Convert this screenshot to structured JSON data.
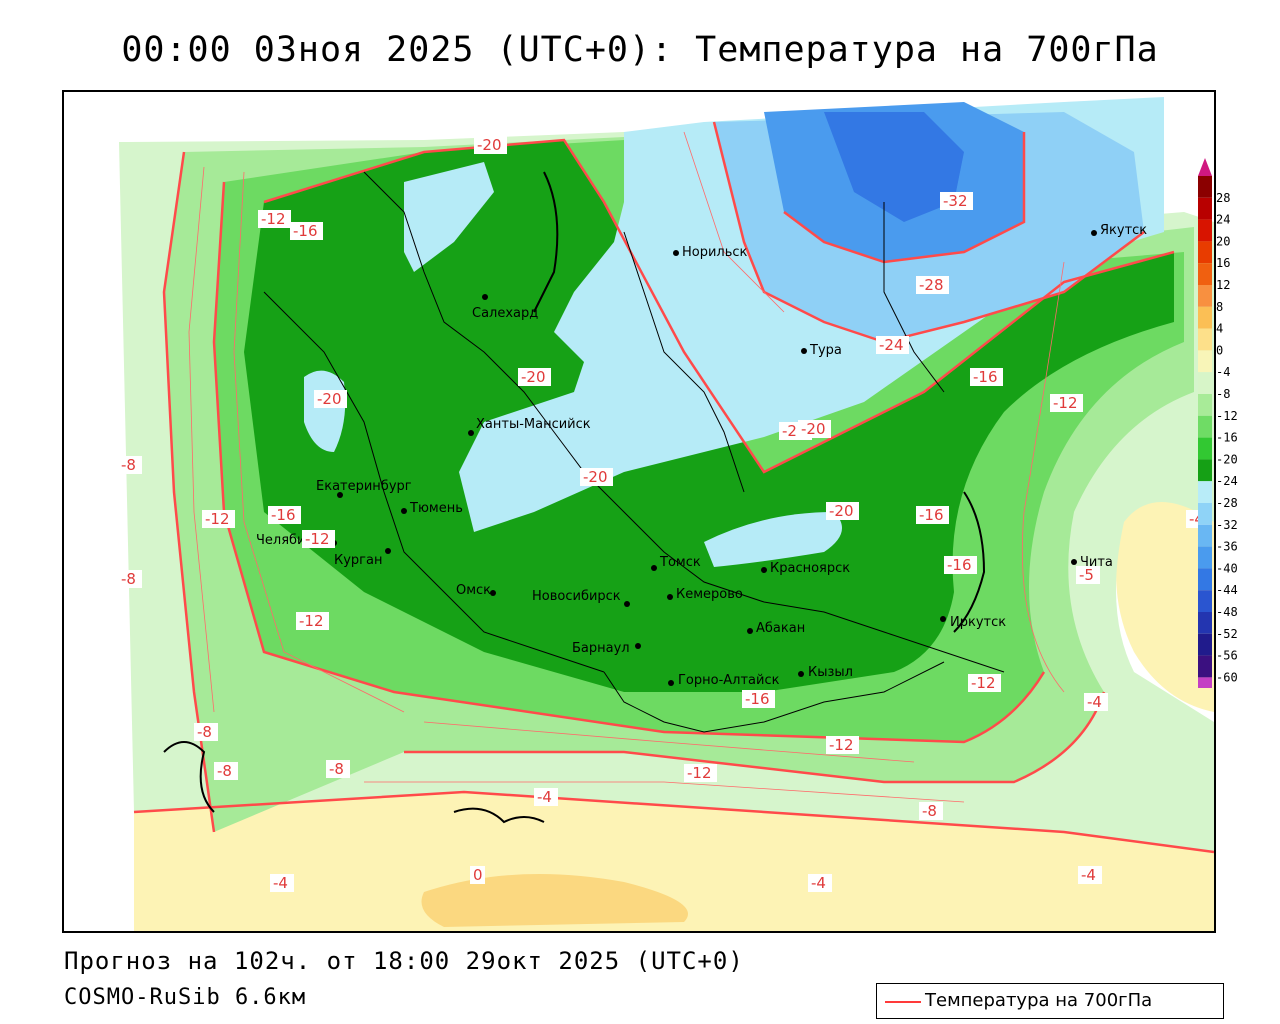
{
  "title": "00:00 03ноя 2025 (UTC+0): Температура на 700гПа",
  "footer": {
    "forecast": "Прогноз на 102ч. от 18:00 29окт 2025 (UTC+0)",
    "model": "COSMO-RuSib 6.6км"
  },
  "legend": {
    "label": "Температура на 700гПа",
    "line_color": "#ff3a3a"
  },
  "colorbar": {
    "ticks": [
      "28",
      "24",
      "20",
      "16",
      "12",
      "8",
      "4",
      "0",
      "-4",
      "-8",
      "-12",
      "-16",
      "-20",
      "-24",
      "-28",
      "-32",
      "-36",
      "-40",
      "-44",
      "-48",
      "-52",
      "-56",
      "-60"
    ],
    "colors": [
      "#8b0000",
      "#b80000",
      "#d81400",
      "#e83c00",
      "#f06010",
      "#f89040",
      "#fbbf55",
      "#fde08a",
      "#f8f5b8",
      "#d7f5c8",
      "#a8eb98",
      "#6fdc65",
      "#32c832",
      "#15a015",
      "#b8ecf8",
      "#8fd3f7",
      "#69b7f3",
      "#4a9bee",
      "#3378e4",
      "#2a55d0",
      "#2335b0",
      "#201b8c",
      "#3b1080",
      "#c43fc4"
    ]
  },
  "cities": [
    {
      "name": "Салехард"
    },
    {
      "name": "Норильск"
    },
    {
      "name": "Якутск"
    },
    {
      "name": "Тура"
    },
    {
      "name": "Ханты-Мансийск"
    },
    {
      "name": "Екатеринбург"
    },
    {
      "name": "Тюмень"
    },
    {
      "name": "Челябинск"
    },
    {
      "name": "Курган"
    },
    {
      "name": "Омск"
    },
    {
      "name": "Новосибирск"
    },
    {
      "name": "Томск"
    },
    {
      "name": "Кемерово"
    },
    {
      "name": "Красноярск"
    },
    {
      "name": "Абакан"
    },
    {
      "name": "Барнаул"
    },
    {
      "name": "Горно-Алтайск"
    },
    {
      "name": "Кызыл"
    },
    {
      "name": "Иркутск"
    },
    {
      "name": "Чита"
    }
  ],
  "isolines": [
    "-20",
    "-16",
    "-12",
    "-16",
    "-20",
    "-20",
    "-20",
    "-20",
    "-20",
    "-32",
    "-28",
    "-24",
    "-16",
    "-12",
    "-16",
    "-16",
    "-20",
    "-12",
    "-12",
    "-8",
    "-12",
    "-8",
    "-8",
    "-4",
    "-4",
    "-5",
    "-12",
    "-12",
    "-8",
    "-4",
    "-4",
    "0",
    "-4",
    "-4",
    "-12",
    "-8",
    "-8",
    "-16"
  ]
}
